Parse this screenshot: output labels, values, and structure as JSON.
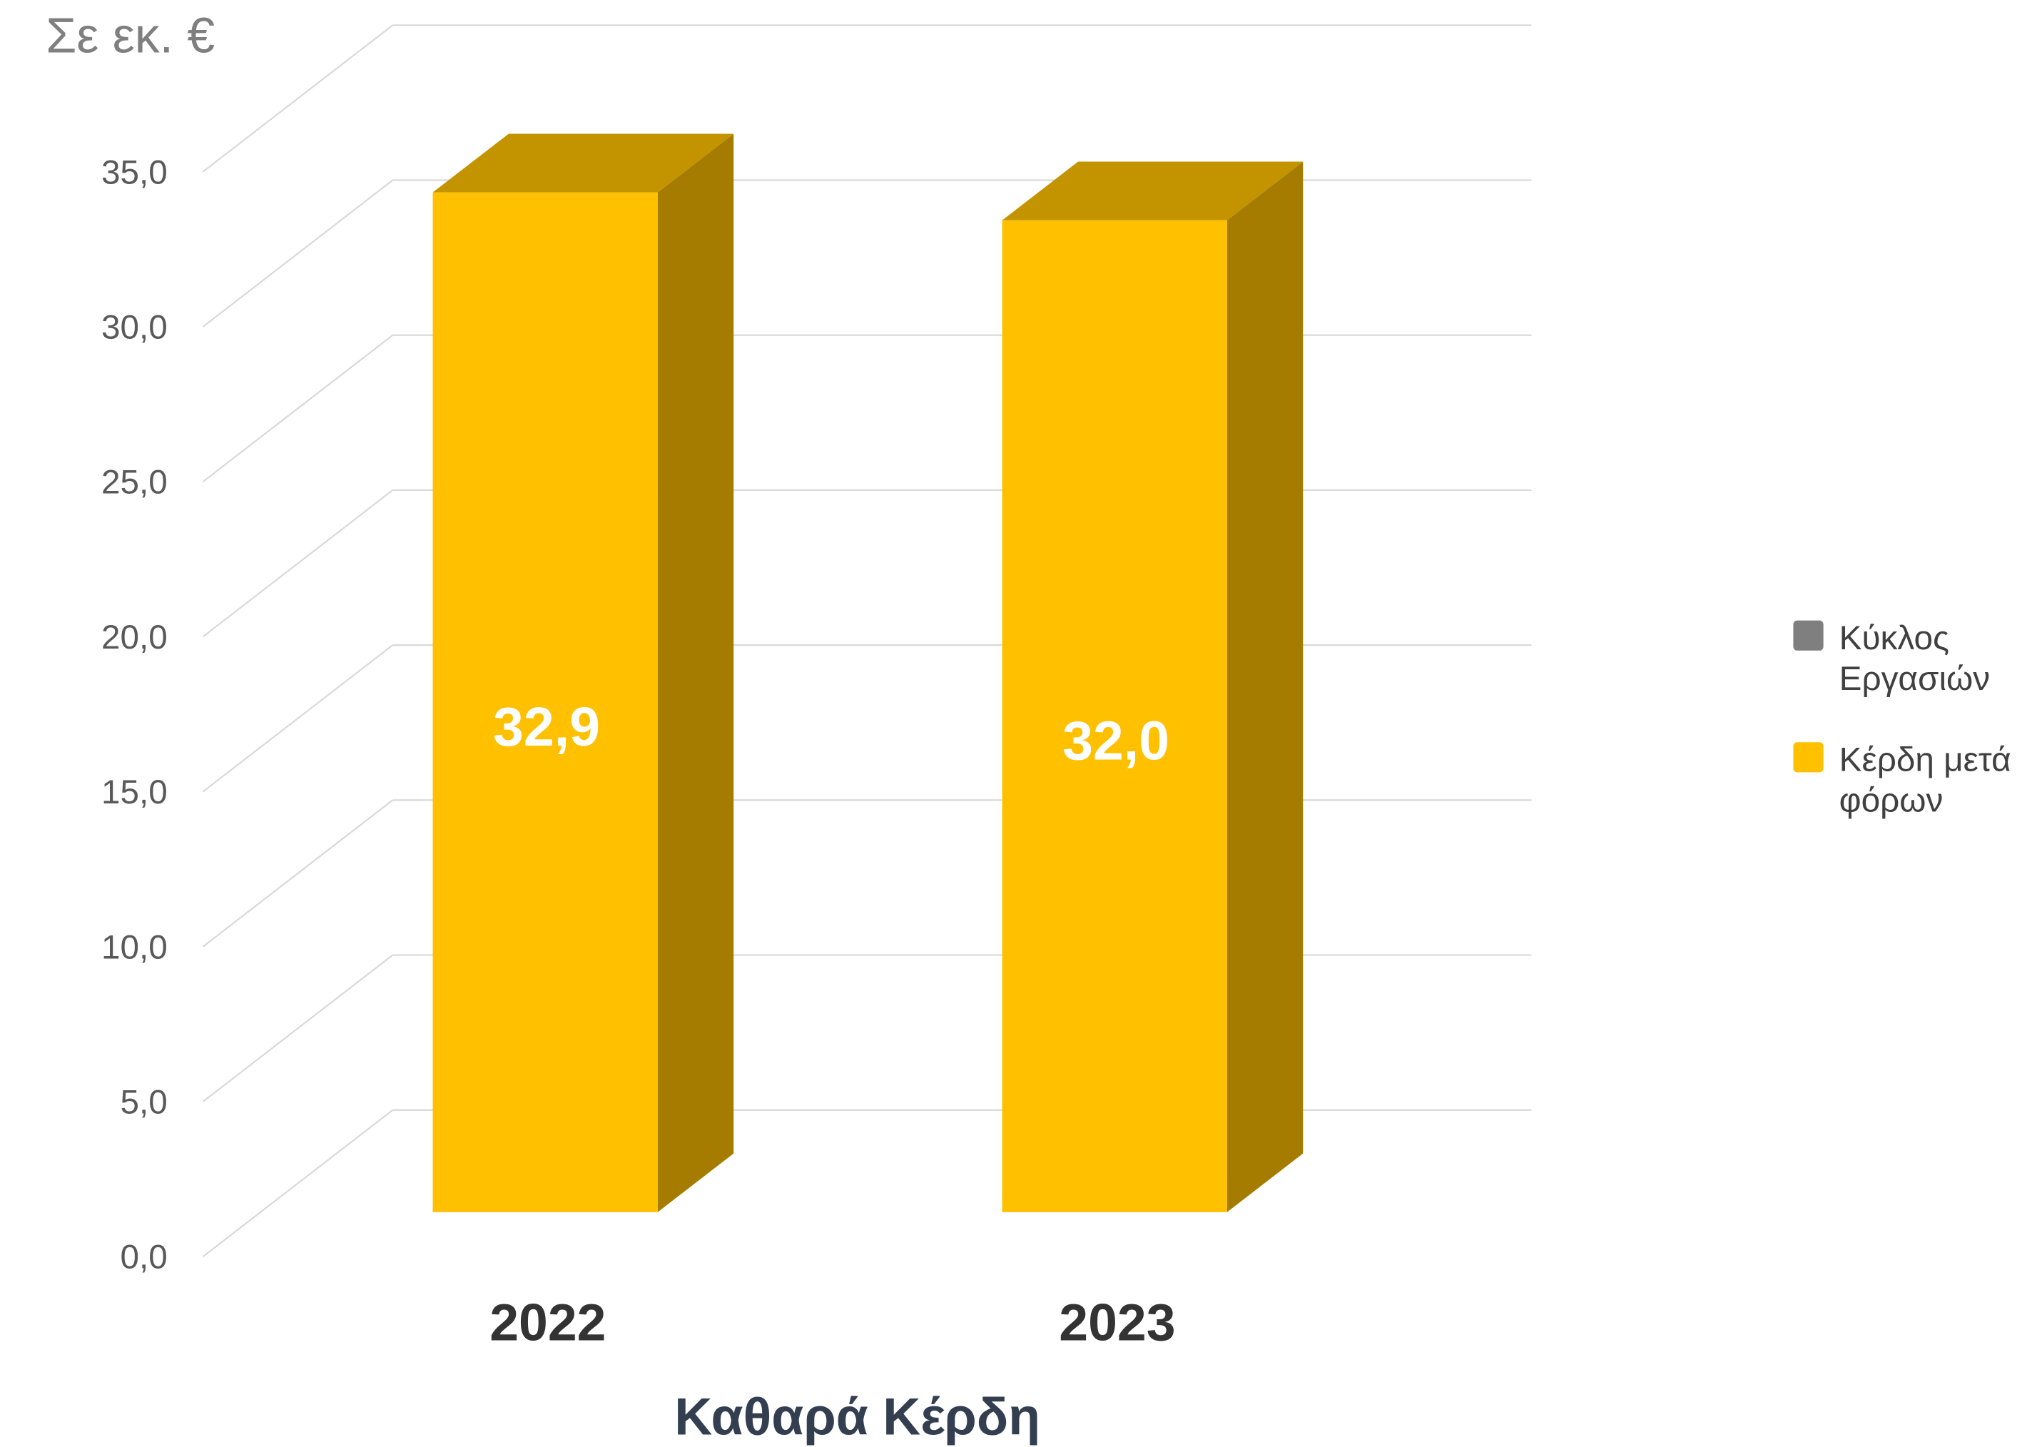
{
  "chart_data": {
    "type": "bar",
    "style": "3d-column",
    "title": "Καθαρά Κέρδη",
    "xlabel": "",
    "ylabel": "Σε εκ. €",
    "categories": [
      "2022",
      "2023"
    ],
    "series": [
      {
        "name": "Κύκλος Εργασιών",
        "color": "#7F7F7F",
        "values": null
      },
      {
        "name": "Κέρδη μετά φόρων",
        "color": "#FFC000",
        "side_color": "#A57C00",
        "top_color": "#C49400",
        "values": [
          32.9,
          32.0
        ],
        "data_labels": [
          "32,9",
          "32,0"
        ]
      }
    ],
    "ylim": [
      0,
      35
    ],
    "yticks": [
      0,
      5,
      10,
      15,
      20,
      25,
      30,
      35
    ],
    "ytick_labels": [
      "0,0",
      "5,0",
      "10,0",
      "15,0",
      "20,0",
      "25,0",
      "30,0",
      "35,0"
    ],
    "grid": true,
    "legend": {
      "position": "right"
    }
  },
  "colors": {
    "background": "#FFFFFF",
    "gridline": "#D9D9D9",
    "tick_text": "#595959",
    "unit_text": "#7F7F7F",
    "category_text": "#333333",
    "title_text": "#333F50",
    "data_label_text": "#FFFFFF",
    "legend_text": "#404040"
  }
}
